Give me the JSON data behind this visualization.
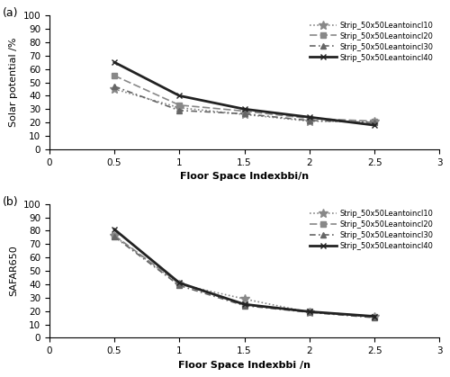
{
  "x": [
    0.5,
    1.0,
    1.5,
    2.0,
    2.5
  ],
  "series_a": {
    "inc10": [
      45.0,
      31.0,
      26.0,
      21.0,
      20.5
    ],
    "inc20": [
      55.0,
      33.0,
      28.5,
      23.0,
      21.0
    ],
    "inc30": [
      47.0,
      29.0,
      26.5,
      21.5,
      20.0
    ],
    "inc40": [
      65.0,
      40.0,
      30.0,
      24.0,
      18.0
    ]
  },
  "series_b": {
    "inc10": [
      76.0,
      40.0,
      29.0,
      19.0,
      15.5
    ],
    "inc20": [
      76.5,
      40.5,
      24.5,
      19.5,
      16.0
    ],
    "inc30": [
      75.5,
      39.0,
      24.0,
      19.0,
      15.0
    ],
    "inc40": [
      81.0,
      41.0,
      25.0,
      19.5,
      16.0
    ]
  },
  "legend_labels": [
    "Strip_50x50Leantoincl10",
    "Strip_50x50Leantoincl20",
    "Strip_50x50Leantoincl30",
    "Strip_50x50Leantoincl40"
  ],
  "xlabel_a": "Floor Space Indexbbi/n",
  "xlabel_b": "Floor Space Indexbbi /n",
  "ylabel_a": "Solar potential /%",
  "ylabel_b": "SAFAR650",
  "xlim": [
    0,
    3
  ],
  "ylim_a": [
    0,
    100
  ],
  "ylim_b": [
    0,
    100
  ],
  "xticks": [
    0,
    0.5,
    1,
    1.5,
    2,
    2.5,
    3
  ],
  "yticks": [
    0,
    10,
    20,
    30,
    40,
    50,
    60,
    70,
    80,
    90,
    100
  ],
  "label_a": "(a)",
  "label_b": "(b)"
}
